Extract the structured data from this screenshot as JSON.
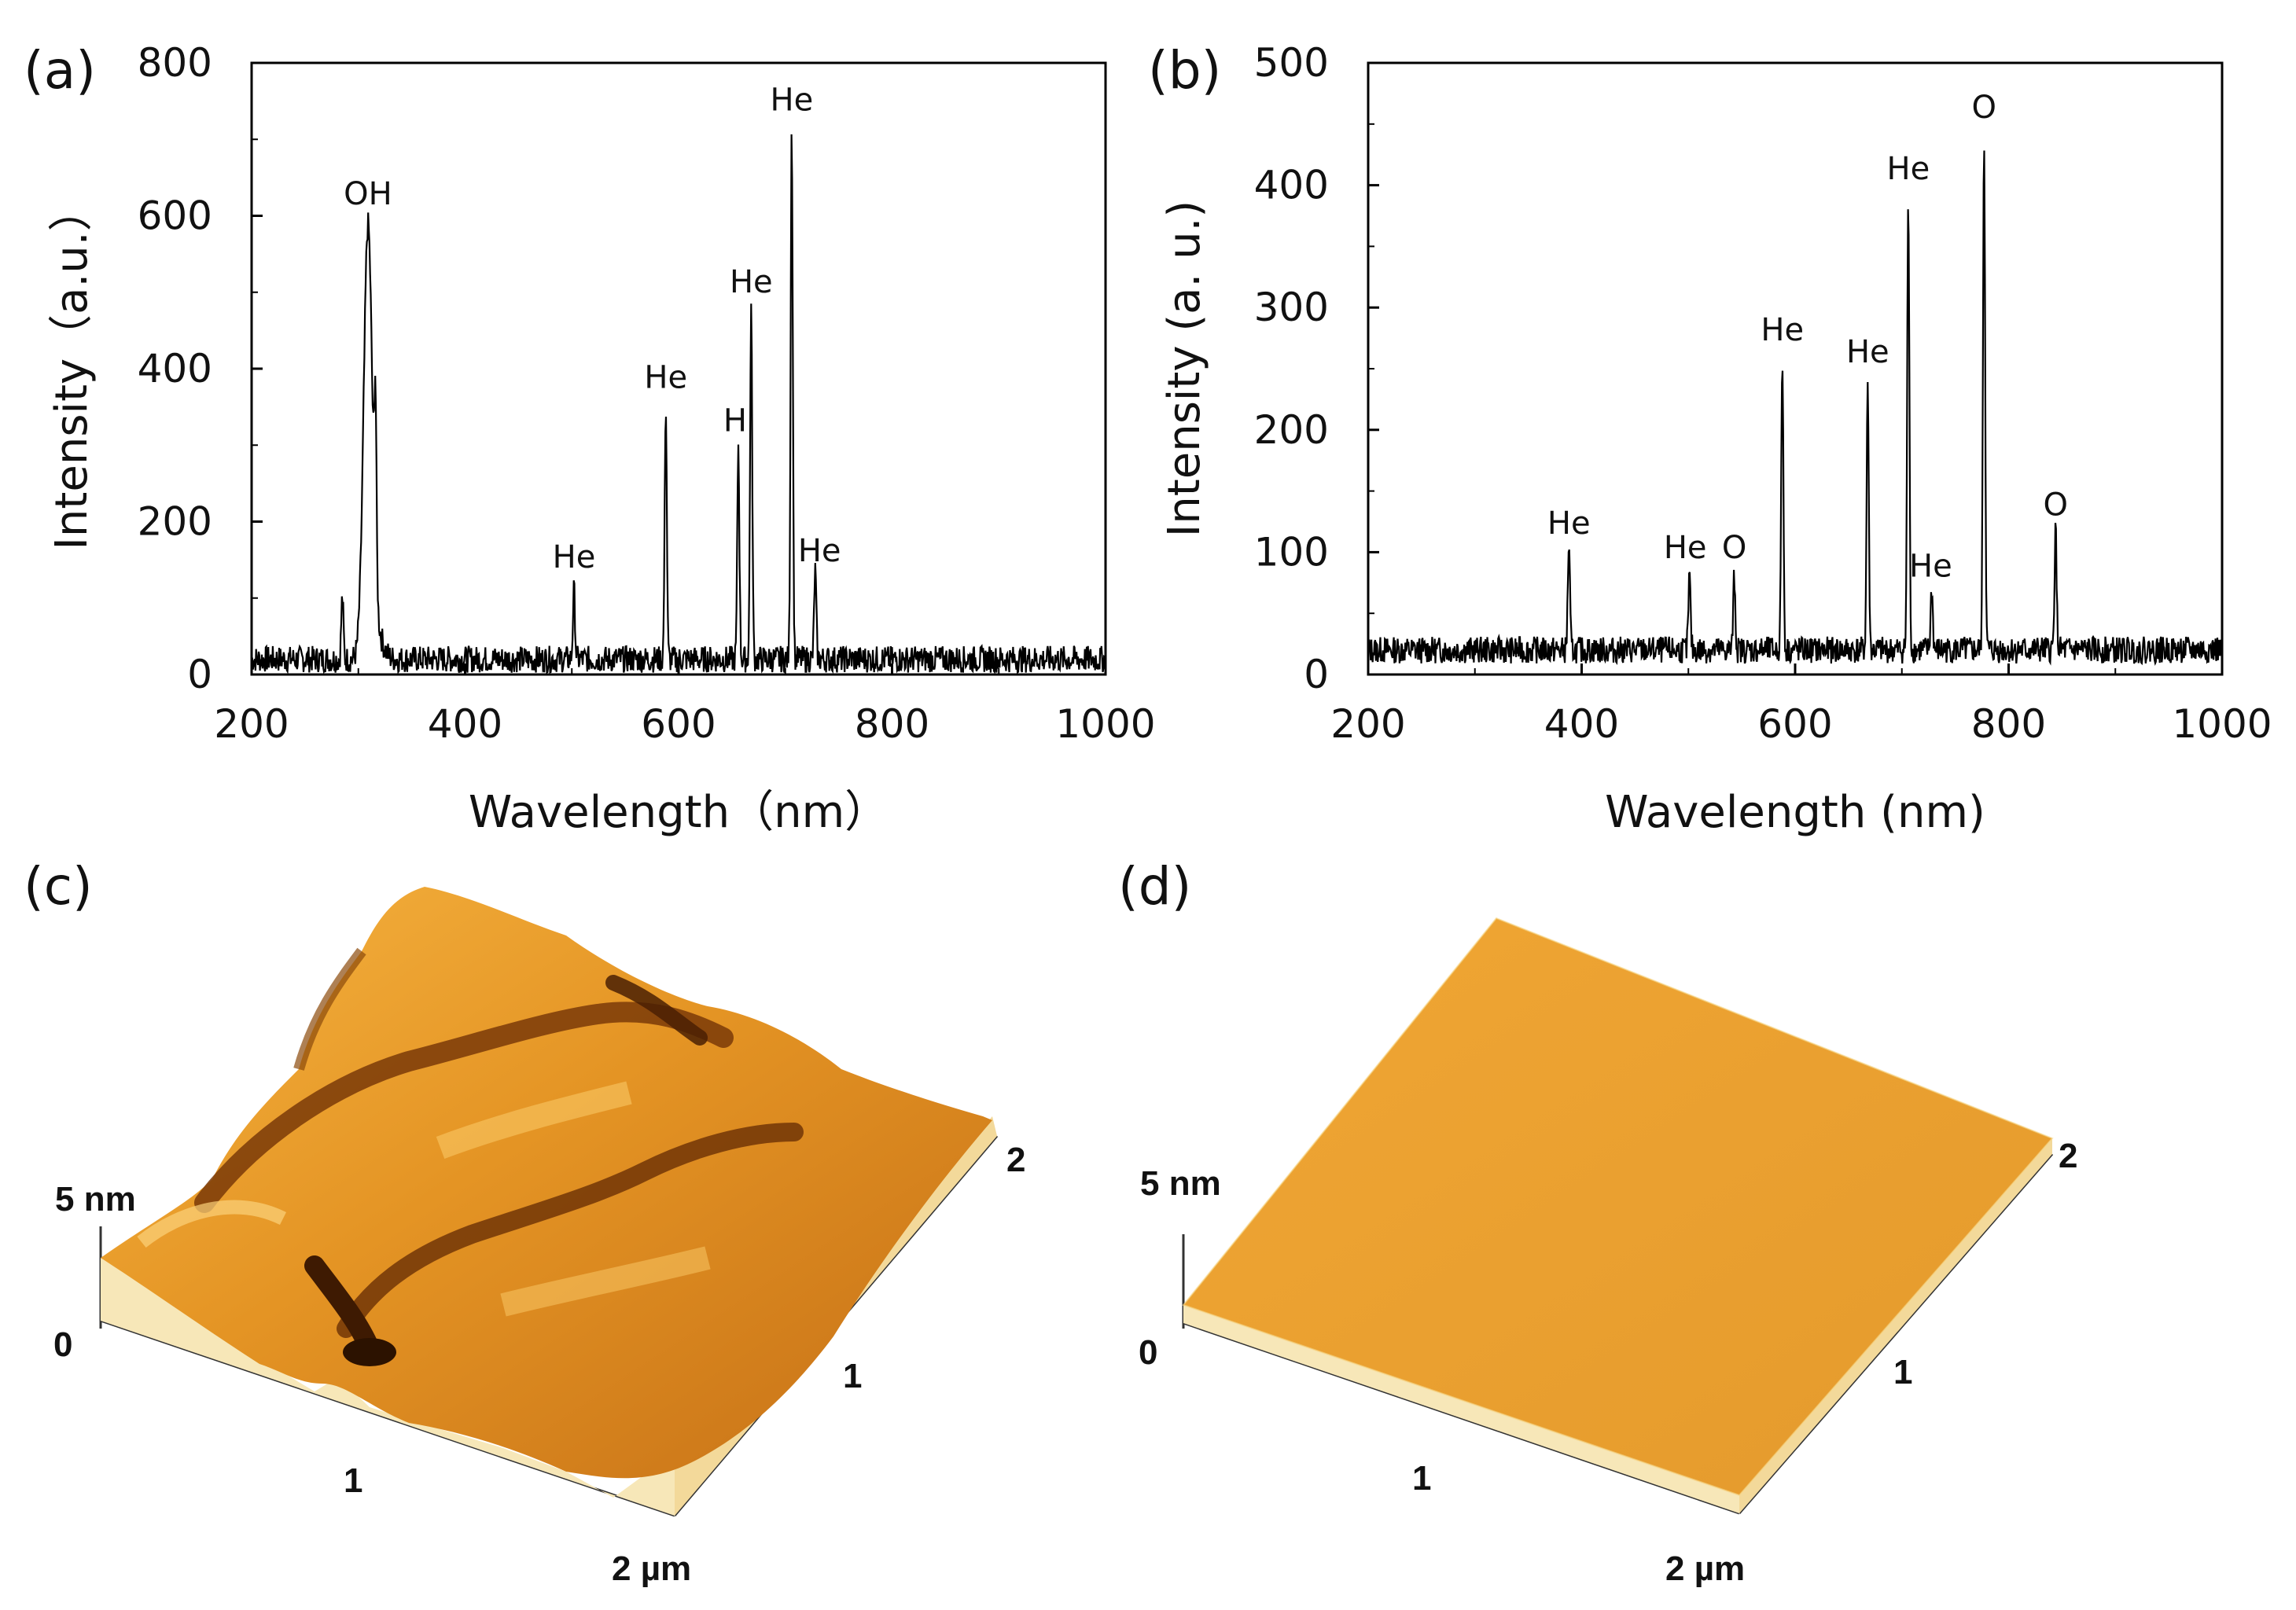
{
  "chart_data": [
    {
      "id": "a",
      "panel_label": "(a)",
      "type": "line",
      "xlabel": "Wavelength（nm）",
      "ylabel": "Intensity（a.u.）",
      "xlim": [
        200,
        1000
      ],
      "ylim": [
        0,
        800
      ],
      "xticks": [
        200,
        400,
        600,
        800,
        1000
      ],
      "yticks": [
        0,
        200,
        400,
        600,
        800
      ],
      "grid": false,
      "baseline": 20,
      "series": [
        {
          "values_type": "emission-lines",
          "peaks": [
            {
              "x": 285,
              "y": 100
            },
            {
              "x": 309,
              "y": 580
            },
            {
              "x": 316,
              "y": 240
            },
            {
              "x": 502,
              "y": 110
            },
            {
              "x": 588,
              "y": 355
            },
            {
              "x": 656,
              "y": 300
            },
            {
              "x": 668,
              "y": 480
            },
            {
              "x": 706,
              "y": 720
            },
            {
              "x": 728,
              "y": 135
            }
          ]
        }
      ],
      "annotations": [
        {
          "text": "OH",
          "x": 309,
          "y": 615
        },
        {
          "text": "He",
          "x": 502,
          "y": 140
        },
        {
          "text": "He",
          "x": 588,
          "y": 375
        },
        {
          "text": "H",
          "x": 653,
          "y": 318
        },
        {
          "text": "He",
          "x": 668,
          "y": 500
        },
        {
          "text": "He",
          "x": 706,
          "y": 738
        },
        {
          "text": "He",
          "x": 732,
          "y": 148
        }
      ]
    },
    {
      "id": "b",
      "panel_label": "(b)",
      "type": "line",
      "xlabel": "Wavelength (nm)",
      "ylabel": "Intensity (a. u.)",
      "xlim": [
        200,
        1000
      ],
      "ylim": [
        0,
        500
      ],
      "xticks": [
        200,
        400,
        600,
        800,
        1000
      ],
      "yticks": [
        0,
        100,
        200,
        300,
        400,
        500
      ],
      "grid": false,
      "baseline": 20,
      "series": [
        {
          "values_type": "emission-lines",
          "peaks": [
            {
              "x": 388,
              "y": 105
            },
            {
              "x": 501,
              "y": 80
            },
            {
              "x": 543,
              "y": 80
            },
            {
              "x": 588,
              "y": 260
            },
            {
              "x": 668,
              "y": 240
            },
            {
              "x": 706,
              "y": 390
            },
            {
              "x": 728,
              "y": 70
            },
            {
              "x": 777,
              "y": 440
            },
            {
              "x": 844,
              "y": 118
            }
          ]
        }
      ],
      "annotations": [
        {
          "text": "He",
          "x": 388,
          "y": 115
        },
        {
          "text": "He",
          "x": 497,
          "y": 95
        },
        {
          "text": "O",
          "x": 543,
          "y": 95
        },
        {
          "text": "He",
          "x": 588,
          "y": 273
        },
        {
          "text": "He",
          "x": 668,
          "y": 255
        },
        {
          "text": "He",
          "x": 727,
          "y": 80
        },
        {
          "text": "He",
          "x": 706,
          "y": 405
        },
        {
          "text": "O",
          "x": 777,
          "y": 455
        },
        {
          "text": "O",
          "x": 844,
          "y": 130
        }
      ]
    }
  ],
  "afm": [
    {
      "id": "c",
      "panel_label": "(c)",
      "z_label": "5 nm",
      "z_zero": "0",
      "x_mid": "1",
      "x_end": "2 µm",
      "y_mid": "1",
      "y_end": "2",
      "surface": "rough"
    },
    {
      "id": "d",
      "panel_label": "(d)",
      "z_label": "5 nm",
      "z_zero": "0",
      "x_mid": "1",
      "x_end": "2 µm",
      "y_mid": "1",
      "y_end": "2",
      "surface": "smooth"
    }
  ],
  "colors": {
    "line": "#000000",
    "afm_light": "#f2b03a",
    "afm_mid": "#d9861f",
    "afm_dark": "#5a2a06",
    "afm_edge": "#fbf4d2"
  }
}
